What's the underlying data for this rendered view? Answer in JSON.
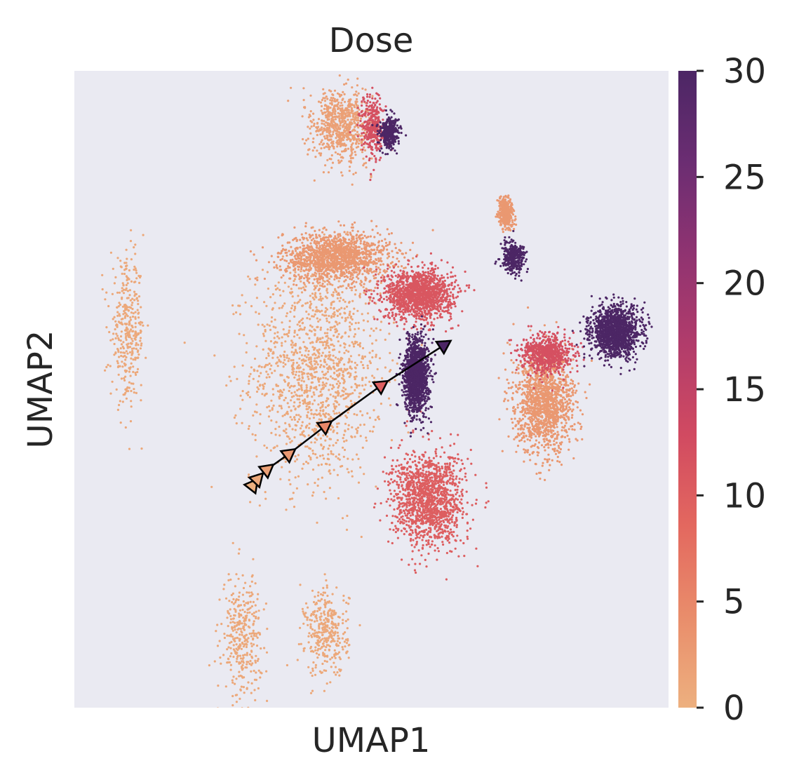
{
  "chart_data": {
    "type": "scatter",
    "title": "Dose",
    "xlabel": "UMAP1",
    "ylabel": "UMAP2",
    "grid": false,
    "axis_ticks_shown": false,
    "background_color": "#eaeaf2",
    "colormap": "flare",
    "colormap_stops": [
      "#edb07f",
      "#e98d6b",
      "#e3685f",
      "#d14a61",
      "#b13c6b",
      "#8f3371",
      "#6b2d72",
      "#4c2665"
    ],
    "colorbar": {
      "label": "",
      "range": [
        0,
        30
      ],
      "ticks": [
        0,
        5,
        10,
        15,
        20,
        25,
        30
      ],
      "tick_labels": [
        "0",
        "5",
        "10",
        "15",
        "20",
        "25",
        "30"
      ]
    },
    "clusters": [
      {
        "name": "",
        "dose": 1,
        "center": [
          -0.1,
          0.04
        ],
        "spread": [
          0.27,
          0.36
        ],
        "density": "high"
      },
      {
        "name": "",
        "dose": 3,
        "center": [
          -0.02,
          0.4
        ],
        "spread": [
          0.22,
          0.08
        ],
        "density": "high"
      },
      {
        "name": "",
        "dose": 1,
        "center": [
          -0.88,
          0.16
        ],
        "spread": [
          0.07,
          0.22
        ],
        "density": "low"
      },
      {
        "name": "",
        "dose": 1,
        "center": [
          -0.41,
          -0.82
        ],
        "spread": [
          0.08,
          0.2
        ],
        "density": "low"
      },
      {
        "name": "",
        "dose": 1,
        "center": [
          -0.06,
          -0.81
        ],
        "spread": [
          0.09,
          0.14
        ],
        "density": "low"
      },
      {
        "name": "",
        "dose": 11,
        "center": [
          0.32,
          0.28
        ],
        "spread": [
          0.14,
          0.08
        ],
        "density": "high"
      },
      {
        "name": "",
        "dose": 10,
        "center": [
          0.36,
          -0.38
        ],
        "spread": [
          0.15,
          0.15
        ],
        "density": "high"
      },
      {
        "name": "",
        "dose": 30,
        "center": [
          0.31,
          0.02
        ],
        "spread": [
          0.05,
          0.12
        ],
        "density": "high"
      },
      {
        "name": "",
        "dose": 3,
        "center": [
          0.84,
          -0.07
        ],
        "spread": [
          0.12,
          0.16
        ],
        "density": "high"
      },
      {
        "name": "",
        "dose": 12,
        "center": [
          0.85,
          0.09
        ],
        "spread": [
          0.1,
          0.06
        ],
        "density": "medium"
      },
      {
        "name": "",
        "dose": 30,
        "center": [
          1.13,
          0.16
        ],
        "spread": [
          0.1,
          0.08
        ],
        "density": "high"
      },
      {
        "name": "",
        "dose": 2,
        "center": [
          0.0,
          0.82
        ],
        "spread": [
          0.12,
          0.12
        ],
        "density": "medium"
      },
      {
        "name": "",
        "dose": 12,
        "center": [
          0.13,
          0.82
        ],
        "spread": [
          0.05,
          0.1
        ],
        "density": "low"
      },
      {
        "name": "",
        "dose": 30,
        "center": [
          0.2,
          0.8
        ],
        "spread": [
          0.04,
          0.05
        ],
        "density": "low"
      },
      {
        "name": "",
        "dose": 30,
        "center": [
          0.71,
          0.4
        ],
        "spread": [
          0.05,
          0.05
        ],
        "density": "low"
      },
      {
        "name": "",
        "dose": 3,
        "center": [
          0.68,
          0.54
        ],
        "spread": [
          0.03,
          0.05
        ],
        "density": "low"
      }
    ],
    "trajectory": {
      "points": [
        {
          "x": -0.36,
          "y": -0.33,
          "dose": 0
        },
        {
          "x": -0.34,
          "y": -0.31,
          "dose": 1
        },
        {
          "x": -0.3,
          "y": -0.28,
          "dose": 2
        },
        {
          "x": -0.21,
          "y": -0.23,
          "dose": 3
        },
        {
          "x": -0.06,
          "y": -0.14,
          "dose": 5
        },
        {
          "x": 0.17,
          "y": -0.01,
          "dose": 10
        },
        {
          "x": 0.43,
          "y": 0.12,
          "dose": 30
        }
      ]
    },
    "xlim": [
      -1.1,
      1.35
    ],
    "ylim": [
      -1.05,
      1.0
    ]
  }
}
